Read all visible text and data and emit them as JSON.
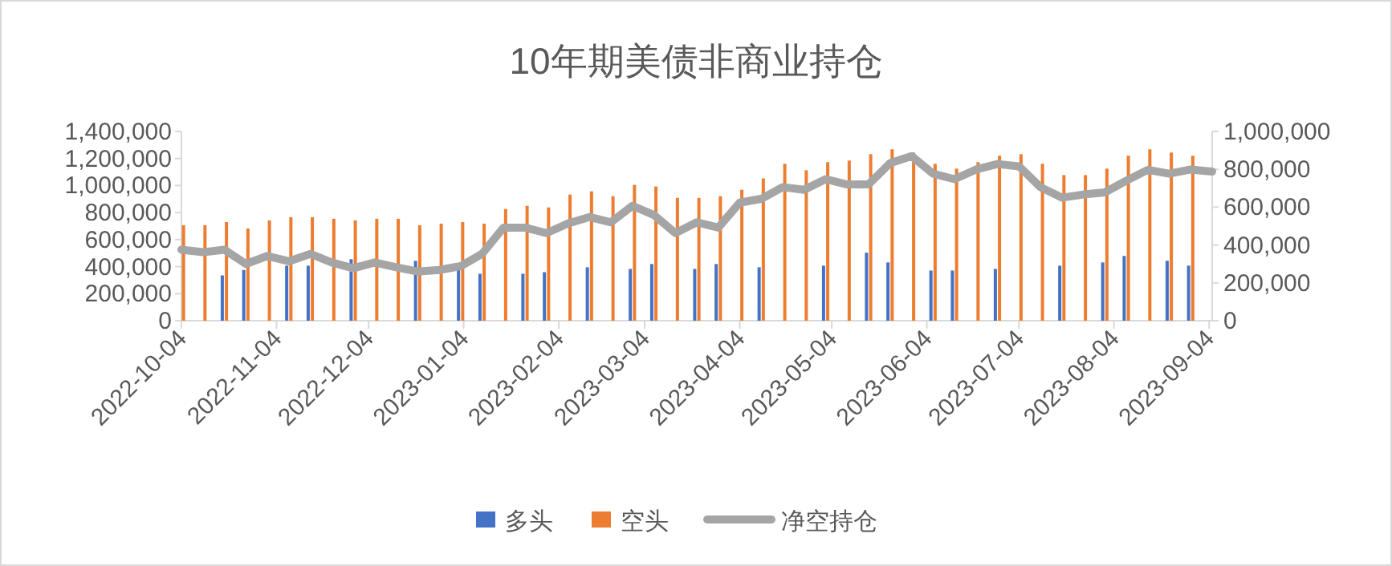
{
  "chart_data": {
    "type": "bar",
    "title": "10年期美债非商业持仓",
    "x": [
      "2022-10-04",
      "2022-10-11",
      "2022-10-18",
      "2022-10-25",
      "2022-11-01",
      "2022-11-08",
      "2022-11-15",
      "2022-11-22",
      "2022-11-29",
      "2022-12-06",
      "2022-12-13",
      "2022-12-20",
      "2022-12-27",
      "2023-01-03",
      "2023-01-10",
      "2023-01-17",
      "2023-01-24",
      "2023-01-31",
      "2023-02-07",
      "2023-02-14",
      "2023-02-21",
      "2023-02-28",
      "2023-03-07",
      "2023-03-14",
      "2023-03-21",
      "2023-03-28",
      "2023-04-04",
      "2023-04-11",
      "2023-04-18",
      "2023-04-25",
      "2023-05-02",
      "2023-05-09",
      "2023-05-16",
      "2023-05-23",
      "2023-05-30",
      "2023-06-06",
      "2023-06-13",
      "2023-06-20",
      "2023-06-27",
      "2023-07-04",
      "2023-07-11",
      "2023-07-18",
      "2023-07-25",
      "2023-08-01",
      "2023-08-08",
      "2023-08-15",
      "2023-08-22",
      "2023-08-29",
      "2023-09-05"
    ],
    "series": [
      {
        "name": "多头",
        "color": "#4472c4",
        "values": [
          null,
          null,
          335000,
          375000,
          null,
          407000,
          407000,
          null,
          455000,
          null,
          null,
          443000,
          null,
          385000,
          347000,
          null,
          347000,
          359000,
          null,
          395000,
          null,
          383000,
          419000,
          null,
          383000,
          419000,
          null,
          395000,
          null,
          null,
          407000,
          null,
          503000,
          431000,
          null,
          371000,
          371000,
          null,
          383000,
          null,
          null,
          407000,
          null,
          431000,
          479000,
          null,
          443000,
          407000,
          null
        ]
      },
      {
        "name": "空头",
        "color": "#ed7d31",
        "values": [
          706000,
          706000,
          730000,
          682000,
          742000,
          766000,
          766000,
          754000,
          742000,
          754000,
          754000,
          706000,
          718000,
          730000,
          718000,
          826000,
          850000,
          838000,
          933000,
          957000,
          921000,
          1005000,
          993000,
          909000,
          909000,
          921000,
          969000,
          1053000,
          1161000,
          1113000,
          1173000,
          1185000,
          1232000,
          1268000,
          1244000,
          1161000,
          1125000,
          1173000,
          1221000,
          1232000,
          1161000,
          1077000,
          1077000,
          1125000,
          1221000,
          1268000,
          1244000,
          1221000,
          null
        ]
      },
      {
        "name": "净空持仓",
        "color": "#a5a5a5",
        "type": "line",
        "axis": "y2",
        "values": [
          375000,
          362000,
          375000,
          300000,
          342000,
          314000,
          353000,
          308000,
          277000,
          308000,
          282000,
          260000,
          268000,
          288000,
          353000,
          492000,
          492000,
          463000,
          514000,
          548000,
          520000,
          607000,
          559000,
          463000,
          520000,
          492000,
          624000,
          644000,
          706000,
          692000,
          748000,
          720000,
          720000,
          833000,
          870000,
          777000,
          748000,
          799000,
          828000,
          816000,
          706000,
          650000,
          667000,
          678000,
          740000,
          797000,
          777000,
          799000,
          788000
        ]
      }
    ],
    "xlim": [
      "2022-10-04",
      "2023-09-05"
    ],
    "xticks": [
      "2022-10-04",
      "2022-11-04",
      "2022-12-04",
      "2023-01-04",
      "2023-02-04",
      "2023-03-04",
      "2023-04-04",
      "2023-05-04",
      "2023-06-04",
      "2023-07-04",
      "2023-08-04",
      "2023-09-04"
    ],
    "ylim": [
      0,
      1400000
    ],
    "yticks": [
      0,
      {
        "value": 200000,
        "label": "200,000"
      },
      {
        "value": 400000,
        "label": "400,000"
      },
      {
        "value": 600000,
        "label": "600,000"
      },
      {
        "value": 800000,
        "label": "800,000"
      },
      {
        "value": 1000000,
        "label": "1,000,000"
      },
      {
        "value": 1200000,
        "label": "1,200,000"
      },
      {
        "value": 1400000,
        "label": "1,400,000"
      }
    ],
    "y2lim": [
      0,
      1000000
    ],
    "y2ticks": [
      0,
      {
        "value": 200000,
        "label": "200,000"
      },
      {
        "value": 400000,
        "label": "400,000"
      },
      {
        "value": 600000,
        "label": "600,000"
      },
      {
        "value": 800000,
        "label": "800,000"
      },
      {
        "value": 1000000,
        "label": "1,000,000"
      }
    ],
    "legend": "bottom"
  }
}
